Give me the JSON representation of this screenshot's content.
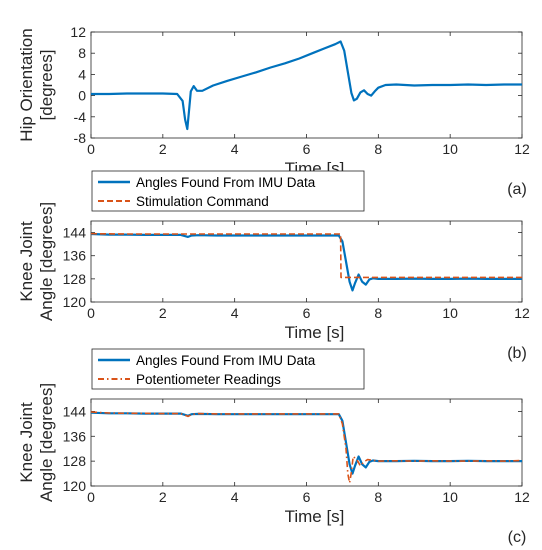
{
  "chart_data": [
    {
      "type": "line",
      "panel_label": "(a)",
      "xlabel": "Time [s]",
      "ylabel_lines": [
        "Hip Orientation",
        "[degrees]"
      ],
      "xlim": [
        0,
        12
      ],
      "ylim": [
        -8,
        12
      ],
      "xticks": [
        0,
        2,
        4,
        6,
        8,
        10,
        12
      ],
      "yticks": [
        -8,
        -4,
        0,
        4,
        8,
        12
      ],
      "grid": false,
      "legend": [],
      "series": [
        {
          "color": "#0072BD",
          "dash": "solid",
          "x": [
            0,
            0.5,
            1,
            1.5,
            2,
            2.4,
            2.55,
            2.62,
            2.68,
            2.72,
            2.78,
            2.86,
            2.95,
            3.1,
            3.4,
            3.8,
            4.2,
            4.6,
            5.0,
            5.4,
            5.8,
            6.2,
            6.5,
            6.8,
            6.95,
            7.05,
            7.15,
            7.25,
            7.32,
            7.4,
            7.5,
            7.6,
            7.7,
            7.8,
            7.9,
            8.0,
            8.2,
            8.5,
            9,
            9.5,
            10,
            10.5,
            11,
            11.5,
            12
          ],
          "y": [
            0.3,
            0.3,
            0.4,
            0.4,
            0.4,
            0.3,
            -1.0,
            -4.5,
            -6.3,
            -3.5,
            0.8,
            1.8,
            0.9,
            0.9,
            1.9,
            2.8,
            3.6,
            4.4,
            5.3,
            6.1,
            7.0,
            8.1,
            8.9,
            9.7,
            10.2,
            8.5,
            4.5,
            0.5,
            -0.9,
            -0.6,
            0.6,
            1.0,
            0.3,
            0.0,
            0.8,
            1.5,
            2.0,
            2.1,
            1.9,
            2.0,
            2.0,
            2.1,
            2.0,
            2.1,
            2.1
          ]
        }
      ]
    },
    {
      "type": "line",
      "panel_label": "(b)",
      "xlabel": "Time [s]",
      "ylabel_lines": [
        "Knee Joint",
        "Angle [degrees]"
      ],
      "xlim": [
        0,
        12
      ],
      "ylim": [
        120,
        148
      ],
      "xticks": [
        0,
        2,
        4,
        6,
        8,
        10,
        12
      ],
      "yticks": [
        120,
        128,
        136,
        144
      ],
      "grid": false,
      "legend_position": "top-left",
      "legend": [
        {
          "label": "Angles Found From IMU Data",
          "color": "#0072BD",
          "dash": "solid"
        },
        {
          "label": "Stimulation Command",
          "color": "#D95319",
          "dash": "dashed"
        }
      ],
      "series": [
        {
          "name": "Angles Found From IMU Data",
          "color": "#0072BD",
          "dash": "solid",
          "x": [
            0,
            0.5,
            1,
            1.5,
            2,
            2.5,
            2.7,
            2.8,
            3,
            3.5,
            4,
            4.5,
            5,
            5.5,
            6,
            6.5,
            6.9,
            7.0,
            7.1,
            7.2,
            7.28,
            7.35,
            7.45,
            7.55,
            7.65,
            7.75,
            7.85,
            8,
            8.5,
            9,
            9.5,
            10,
            10.5,
            11,
            11.5,
            12
          ],
          "y": [
            143.5,
            143.3,
            143.3,
            143.2,
            143.2,
            143.2,
            142.5,
            143.0,
            143.1,
            143.0,
            143.0,
            143.0,
            143.0,
            143.0,
            143.0,
            143.0,
            143.0,
            141.0,
            134.0,
            127.0,
            124.0,
            126.5,
            129.5,
            127.0,
            126.0,
            127.8,
            128.2,
            128.0,
            128.0,
            128.1,
            128.0,
            128.0,
            128.1,
            128.0,
            128.0,
            128.0
          ]
        },
        {
          "name": "Stimulation Command",
          "color": "#D95319",
          "dash": "dashed",
          "x": [
            0,
            1,
            2,
            3,
            4,
            5,
            6,
            6.95,
            6.96,
            7.0,
            8,
            9,
            10,
            11,
            12
          ],
          "y": [
            143.6,
            143.5,
            143.5,
            143.5,
            143.5,
            143.5,
            143.5,
            143.5,
            128.5,
            128.5,
            128.5,
            128.5,
            128.5,
            128.5,
            128.5
          ]
        }
      ]
    },
    {
      "type": "line",
      "panel_label": "(c)",
      "xlabel": "Time [s]",
      "ylabel_lines": [
        "Knee Joint",
        "Angle [degrees]"
      ],
      "xlim": [
        0,
        12
      ],
      "ylim": [
        120,
        148
      ],
      "xticks": [
        0,
        2,
        4,
        6,
        8,
        10,
        12
      ],
      "yticks": [
        120,
        128,
        136,
        144
      ],
      "grid": false,
      "legend_position": "top-left",
      "legend": [
        {
          "label": "Angles Found From IMU Data",
          "color": "#0072BD",
          "dash": "solid"
        },
        {
          "label": "Potentiometer Readings",
          "color": "#D95319",
          "dash": "dashdot"
        }
      ],
      "series": [
        {
          "name": "Angles Found From IMU Data",
          "color": "#0072BD",
          "dash": "solid",
          "x": [
            0,
            0.5,
            1,
            1.5,
            2,
            2.5,
            2.7,
            2.8,
            3,
            3.5,
            4,
            4.5,
            5,
            5.5,
            6,
            6.5,
            6.9,
            7.0,
            7.1,
            7.2,
            7.28,
            7.35,
            7.45,
            7.55,
            7.65,
            7.75,
            7.85,
            8,
            8.5,
            9,
            9.5,
            10,
            10.5,
            11,
            11.5,
            12
          ],
          "y": [
            143.6,
            143.4,
            143.4,
            143.3,
            143.3,
            143.3,
            142.6,
            143.1,
            143.2,
            143.1,
            143.1,
            143.1,
            143.1,
            143.1,
            143.1,
            143.1,
            143.1,
            141.0,
            134.0,
            127.0,
            124.0,
            126.5,
            129.5,
            127.0,
            126.0,
            127.8,
            128.2,
            128.0,
            128.0,
            128.1,
            128.0,
            128.0,
            128.1,
            128.0,
            128.0,
            128.0
          ]
        },
        {
          "name": "Potentiometer Readings",
          "color": "#D95319",
          "dash": "dashdot",
          "x": [
            0,
            0.5,
            1,
            1.5,
            2,
            2.5,
            2.7,
            2.8,
            3,
            3.5,
            4,
            4.5,
            5,
            5.5,
            6,
            6.5,
            6.9,
            7.0,
            7.1,
            7.15,
            7.2,
            7.25,
            7.3,
            7.4,
            7.5,
            7.6,
            7.7,
            8,
            8.5,
            9,
            9.5,
            10,
            10.5,
            11,
            11.5,
            12
          ],
          "y": [
            143.8,
            143.5,
            143.4,
            143.4,
            143.3,
            143.3,
            142.4,
            143.0,
            143.3,
            143.2,
            143.2,
            143.2,
            143.2,
            143.2,
            143.2,
            143.2,
            143.2,
            140.0,
            132.0,
            124.0,
            121.0,
            124.5,
            129.5,
            128.5,
            126.5,
            127.8,
            128.5,
            128.0,
            128.1,
            128.0,
            128.1,
            128.0,
            128.0,
            128.1,
            128.0,
            128.2
          ]
        }
      ]
    }
  ]
}
